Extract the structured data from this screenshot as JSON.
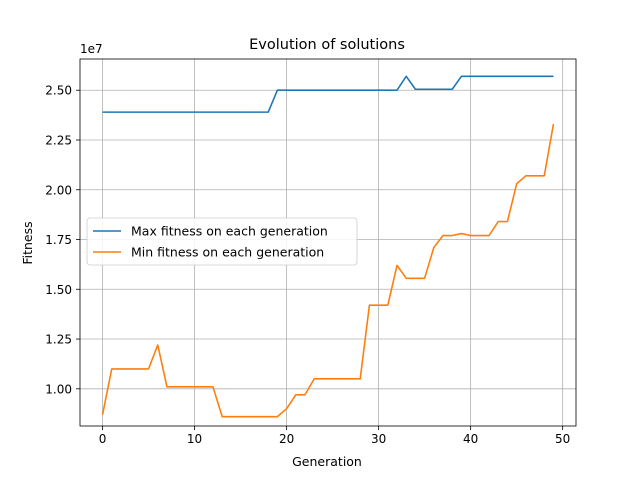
{
  "chart_data": {
    "type": "line",
    "title": "Evolution of solutions",
    "xlabel": "Generation",
    "ylabel": "Fitness",
    "y_offset_label": "1e7",
    "xlim": [
      -2.45,
      51.45
    ],
    "ylim": [
      0.8131,
      2.6569
    ],
    "x_ticks": [
      0,
      10,
      20,
      30,
      40,
      50
    ],
    "x_tick_labels": [
      "0",
      "10",
      "20",
      "30",
      "40",
      "50"
    ],
    "y_ticks": [
      1.0,
      1.25,
      1.5,
      1.75,
      2.0,
      2.25,
      2.5
    ],
    "y_tick_labels": [
      "1.00",
      "1.25",
      "1.50",
      "1.75",
      "2.00",
      "2.25",
      "2.50"
    ],
    "grid": true,
    "legend_position": "center-left",
    "x": [
      0,
      1,
      2,
      3,
      4,
      5,
      6,
      7,
      8,
      9,
      10,
      11,
      12,
      13,
      14,
      15,
      16,
      17,
      18,
      19,
      20,
      21,
      22,
      23,
      24,
      25,
      26,
      27,
      28,
      29,
      30,
      31,
      32,
      33,
      34,
      35,
      36,
      37,
      38,
      39,
      40,
      41,
      42,
      43,
      44,
      45,
      46,
      47,
      48,
      49
    ],
    "series": [
      {
        "name": "Max fitness on each generation",
        "color": "#1f77b4",
        "values": [
          2.39,
          2.39,
          2.39,
          2.39,
          2.39,
          2.39,
          2.39,
          2.39,
          2.39,
          2.39,
          2.39,
          2.39,
          2.39,
          2.39,
          2.39,
          2.39,
          2.39,
          2.39,
          2.39,
          2.5,
          2.5,
          2.5,
          2.5,
          2.5,
          2.5,
          2.5,
          2.5,
          2.5,
          2.5,
          2.5,
          2.5,
          2.5,
          2.5,
          2.57,
          2.505,
          2.505,
          2.505,
          2.505,
          2.505,
          2.57,
          2.57,
          2.57,
          2.57,
          2.57,
          2.57,
          2.57,
          2.57,
          2.57,
          2.57,
          2.57
        ]
      },
      {
        "name": "Min fitness on each generation",
        "color": "#ff7f0e",
        "values": [
          0.87,
          1.1,
          1.1,
          1.1,
          1.1,
          1.1,
          1.22,
          1.01,
          1.01,
          1.01,
          1.01,
          1.01,
          1.01,
          0.86,
          0.86,
          0.86,
          0.86,
          0.86,
          0.86,
          0.86,
          0.9,
          0.97,
          0.97,
          1.05,
          1.05,
          1.05,
          1.05,
          1.05,
          1.05,
          1.42,
          1.42,
          1.42,
          1.62,
          1.555,
          1.555,
          1.555,
          1.71,
          1.77,
          1.77,
          1.78,
          1.77,
          1.77,
          1.77,
          1.84,
          1.84,
          2.03,
          2.07,
          2.07,
          2.07,
          2.33
        ]
      }
    ]
  }
}
